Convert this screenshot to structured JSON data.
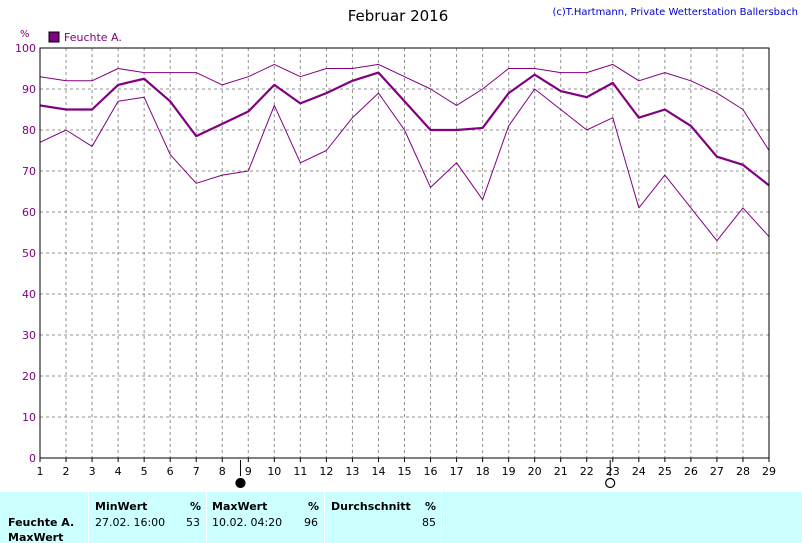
{
  "header": {
    "title": "Februar 2016",
    "copyright": "(c)T.Hartmann, Private Wetterstation Ballersbach"
  },
  "colors": {
    "series": "#800080",
    "axis_text": "#800080",
    "grid": "#909090",
    "stats_bg": "#ccffff"
  },
  "chart_data": {
    "type": "line",
    "title": "Februar 2016",
    "ylabel": "%",
    "xlabel": "",
    "ylim": [
      0,
      100
    ],
    "yticks": [
      0,
      10,
      20,
      30,
      40,
      50,
      60,
      70,
      80,
      90,
      100
    ],
    "x": [
      1,
      2,
      3,
      4,
      5,
      6,
      7,
      8,
      9,
      10,
      11,
      12,
      13,
      14,
      15,
      16,
      17,
      18,
      19,
      20,
      21,
      22,
      23,
      24,
      25,
      26,
      27,
      28,
      29
    ],
    "grid": true,
    "legend_position": "top-left",
    "legend": [
      "Feuchte A."
    ],
    "series": [
      {
        "name": "Feuchte A.",
        "role": "average",
        "values": [
          86,
          85,
          85,
          91,
          92.5,
          87,
          78.5,
          81.5,
          84.5,
          91,
          86.5,
          89,
          92,
          94,
          87,
          80,
          80,
          80.5,
          89,
          93.5,
          89.5,
          88,
          91.5,
          83,
          85,
          81,
          73.5,
          71.5,
          66.5
        ]
      },
      {
        "role": "max",
        "values": [
          93,
          92,
          92,
          95,
          94,
          94,
          94,
          91,
          93,
          96,
          93,
          95,
          95,
          96,
          93,
          90,
          86,
          90,
          95,
          95,
          94,
          94,
          96,
          92,
          94,
          92,
          89,
          85,
          75
        ]
      },
      {
        "role": "min",
        "values": [
          77,
          80,
          76,
          87,
          88,
          74,
          67,
          69,
          70,
          86,
          72,
          75,
          83,
          89,
          80,
          66,
          72,
          63,
          81,
          90,
          85,
          80,
          83,
          61,
          69,
          61,
          53,
          61,
          54
        ]
      }
    ],
    "moon_phases": [
      {
        "day": 8.7,
        "phase": "new"
      },
      {
        "day": 22.9,
        "phase": "full"
      }
    ]
  },
  "stats": {
    "row_label": "Feuchte A.",
    "row_label2": "MaxWert",
    "min_header": "MinWert",
    "min_unit": "%",
    "min_date": "27.02.  16:00",
    "min_value": "53",
    "max_header": "MaxWert",
    "max_unit": "%",
    "max_date": "10.02.  04:20",
    "max_value": "96",
    "avg_header": "Durchschnitt",
    "avg_unit": "%",
    "avg_value": "85"
  }
}
